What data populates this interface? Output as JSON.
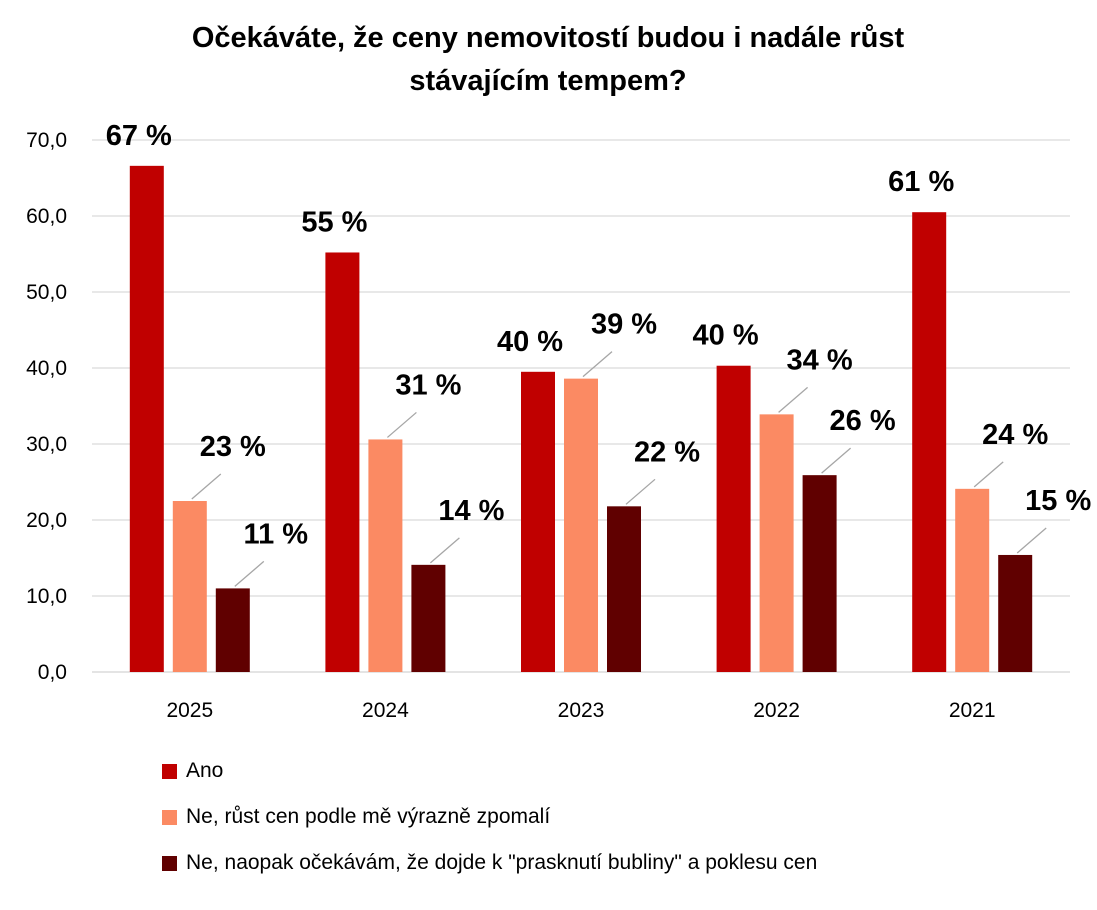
{
  "chart_data": {
    "type": "bar",
    "title": [
      "Očekáváte, že ceny nemovitostí budou i nadále růst",
      "stávajícím tempem?"
    ],
    "categories": [
      "2025",
      "2024",
      "2023",
      "2022",
      "2021"
    ],
    "series": [
      {
        "name": "Ano",
        "color": "#c00000",
        "values": [
          66.6,
          55.2,
          39.5,
          40.3,
          60.5
        ],
        "labels": [
          "67 %",
          "55 %",
          "40 %",
          "40 %",
          "61 %"
        ]
      },
      {
        "name": "Ne, růst cen podle mě výrazně zpomalí",
        "color": "#fb8a63",
        "values": [
          22.5,
          30.6,
          38.6,
          33.9,
          24.1
        ],
        "labels": [
          "23 %",
          "31 %",
          "39 %",
          "34 %",
          "24 %"
        ]
      },
      {
        "name": "Ne, naopak očekávám, že dojde k \"prasknutí bubliny\" a poklesu cen",
        "color": "#600000",
        "values": [
          11.0,
          14.1,
          21.8,
          25.9,
          15.4
        ],
        "labels": [
          "11 %",
          "14 %",
          "22 %",
          "26 %",
          "15 %"
        ]
      }
    ],
    "yticks": [
      "0,0",
      "10,0",
      "20,0",
      "30,0",
      "40,0",
      "50,0",
      "60,0",
      "70,0"
    ],
    "ylim": [
      0,
      70
    ],
    "grid": true,
    "legend_position": "bottom-left"
  }
}
